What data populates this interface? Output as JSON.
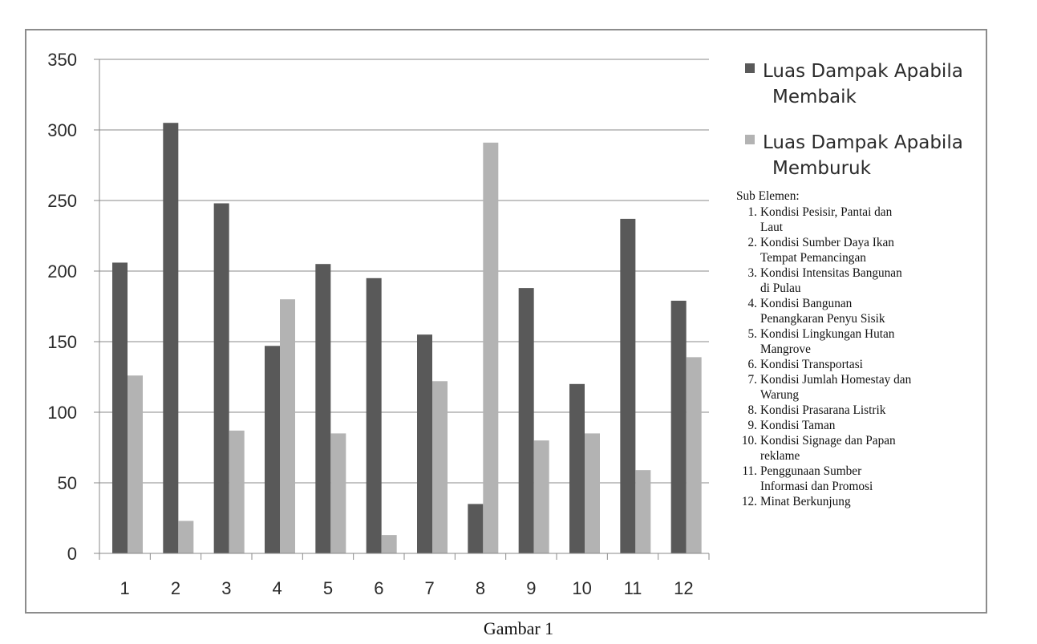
{
  "chart_data": {
    "type": "bar",
    "categories": [
      "1",
      "2",
      "3",
      "4",
      "5",
      "6",
      "7",
      "8",
      "9",
      "10",
      "11",
      "12"
    ],
    "series": [
      {
        "name": "Luas Dampak Apabila Membaik",
        "color": "#595959",
        "values": [
          206,
          305,
          248,
          147,
          205,
          195,
          155,
          35,
          188,
          120,
          237,
          179
        ]
      },
      {
        "name": "Luas Dampak Apabila Memburuk",
        "color": "#b3b3b3",
        "values": [
          126,
          23,
          87,
          180,
          85,
          13,
          122,
          291,
          80,
          85,
          59,
          139
        ]
      }
    ],
    "ylim": [
      0,
      350
    ],
    "yticks": [
      0,
      50,
      100,
      150,
      200,
      250,
      300,
      350
    ],
    "grid": true,
    "legend_position": "top-right"
  },
  "sub_elements": {
    "title": "Sub Elemen:",
    "items": [
      {
        "num": "1.",
        "text": "Kondisi Pesisir, Pantai dan",
        "cont": "Laut"
      },
      {
        "num": "2.",
        "text": "Kondisi Sumber Daya Ikan",
        "cont": "Tempat Pemancingan"
      },
      {
        "num": "3.",
        "text": "Kondisi Intensitas Bangunan",
        "cont": "di Pulau"
      },
      {
        "num": "4.",
        "text": "Kondisi Bangunan",
        "cont": "Penangkaran Penyu Sisik"
      },
      {
        "num": "5.",
        "text": "Kondisi Lingkungan Hutan",
        "cont": "Mangrove"
      },
      {
        "num": "6.",
        "text": "Kondisi Transportasi",
        "cont": ""
      },
      {
        "num": "7.",
        "text": "Kondisi Jumlah Homestay dan",
        "cont": "Warung"
      },
      {
        "num": "8.",
        "text": "Kondisi Prasarana Listrik",
        "cont": ""
      },
      {
        "num": "9.",
        "text": "Kondisi Taman",
        "cont": ""
      },
      {
        "num": "10.",
        "text": "Kondisi Signage dan Papan",
        "cont": "reklame"
      },
      {
        "num": "11.",
        "text": "Penggunaan Sumber",
        "cont": "Informasi dan Promosi"
      },
      {
        "num": "12.",
        "text": "Minat Berkunjung",
        "cont": ""
      }
    ]
  },
  "caption": "Gambar 1"
}
